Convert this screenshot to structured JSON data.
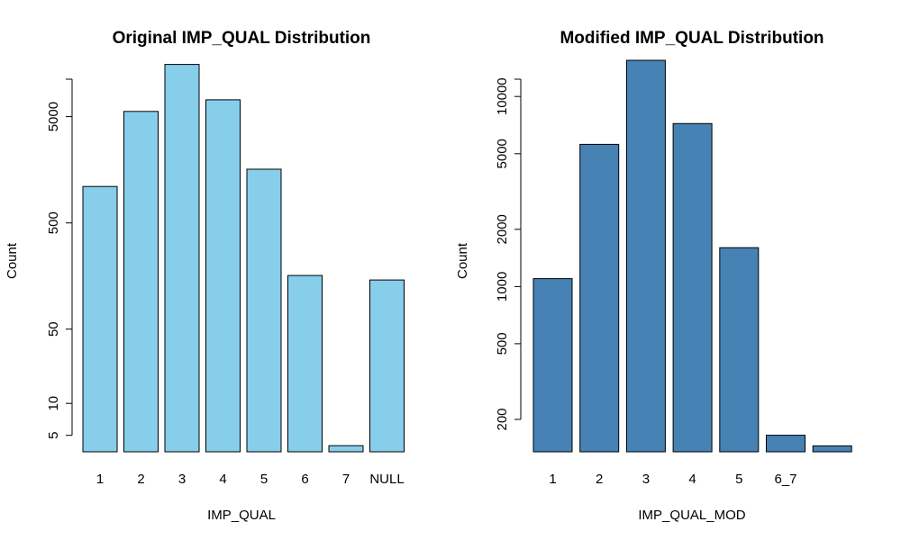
{
  "chart_data": [
    {
      "type": "bar",
      "title": "Original IMP_QUAL Distribution",
      "xlabel": "IMP_QUAL",
      "ylabel": "Count",
      "yscale": "log",
      "ylim": [
        3.5,
        16000
      ],
      "categories": [
        "1",
        "2",
        "3",
        "4",
        "5",
        "6",
        "7",
        "NULL"
      ],
      "values": [
        1100,
        5600,
        15500,
        7200,
        1600,
        160,
        4,
        145
      ],
      "yticks": [
        5,
        10,
        50,
        500,
        5000
      ],
      "bar_color": "#87CEEB",
      "grid": false
    },
    {
      "type": "bar",
      "title": "Modified IMP_QUAL Distribution",
      "xlabel": "IMP_QUAL_MOD",
      "ylabel": "Count",
      "yscale": "log",
      "ylim": [
        135,
        15000
      ],
      "categories": [
        "1",
        "2",
        "3",
        "4",
        "5",
        "6_7",
        ""
      ],
      "values": [
        1100,
        5600,
        15500,
        7200,
        1600,
        165,
        145
      ],
      "yticks": [
        200,
        500,
        1000,
        2000,
        5000,
        10000
      ],
      "bar_color": "#4682B4",
      "grid": false
    }
  ]
}
